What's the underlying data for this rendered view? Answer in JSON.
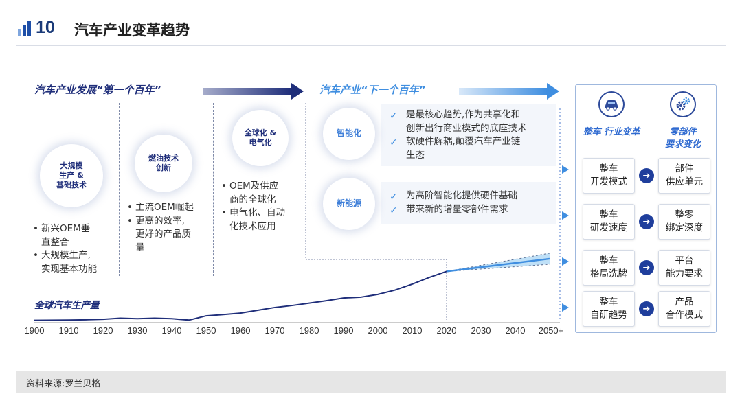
{
  "header": {
    "number": "10",
    "title": "汽车产业变革趋势"
  },
  "eras": {
    "first": "汽车产业发展“第一个百年”",
    "next": "汽车产业“下一个百年”"
  },
  "phases": [
    {
      "circle": "大规模\n生产 &\n基础技术",
      "bullets": [
        "新兴OEM垂\n直整合",
        "大规模生产,\n实现基本功能"
      ]
    },
    {
      "circle": "燃油技术\n创新",
      "bullets": [
        "主流OEM崛起",
        "更高的效率,\n更好的产品质\n量"
      ]
    },
    {
      "circle": "全球化 &\n电气化",
      "bullets": [
        "OEM及供应\n商的全球化",
        "电气化、自动\n化技术应用"
      ]
    }
  ],
  "future": [
    {
      "circle": "智能化",
      "points": [
        "是最核心趋势,作为共享化和\n创新出行商业模式的底座技术",
        "软硬件解耦,颠覆汽车产业链\n生态"
      ]
    },
    {
      "circle": "新能源",
      "points": [
        "为高阶智能化提供硬件基础",
        "带来新的增量零部件需求"
      ]
    }
  ],
  "right_panel": {
    "left_header": "整车\n行业变革",
    "right_header": "零部件\n要求变化",
    "left_icon": "car-icon",
    "right_icon": "gears-icon",
    "rows": [
      {
        "left": "整车\n开发模式",
        "right": "部件\n供应单元"
      },
      {
        "left": "整车\n研发速度",
        "right": "整零\n绑定深度"
      },
      {
        "left": "整车\n格局洗牌",
        "right": "平台\n能力要求"
      },
      {
        "left": "整车\n自研趋势",
        "right": "产品\n合作模式"
      }
    ]
  },
  "chart_data": {
    "type": "line",
    "title": "全球汽车生产量",
    "x_ticks": [
      "1900",
      "1910",
      "1920",
      "1930",
      "1940",
      "1950",
      "1960",
      "1970",
      "1980",
      "1990",
      "2000",
      "2010",
      "2020",
      "2030",
      "2040",
      "2050+"
    ],
    "series": [
      {
        "values": [
          [
            1900,
            0.3
          ],
          [
            1910,
            0.6
          ],
          [
            1915,
            1.0
          ],
          [
            1920,
            1.6
          ],
          [
            1925,
            3.0
          ],
          [
            1930,
            2.4
          ],
          [
            1935,
            3.0
          ],
          [
            1940,
            2.4
          ],
          [
            1945,
            0.6
          ],
          [
            1950,
            6.0
          ],
          [
            1955,
            7.6
          ],
          [
            1960,
            9.4
          ],
          [
            1965,
            13.0
          ],
          [
            1970,
            16.5
          ],
          [
            1975,
            19.0
          ],
          [
            1980,
            22.0
          ],
          [
            1985,
            25.0
          ],
          [
            1990,
            28.5
          ],
          [
            1995,
            29.5
          ],
          [
            2000,
            33.0
          ],
          [
            2005,
            38.5
          ],
          [
            2010,
            46.0
          ],
          [
            2015,
            54.5
          ],
          [
            2020,
            62.0
          ]
        ]
      }
    ],
    "forecast": {
      "center": [
        [
          2020,
          62.0
        ],
        [
          2050,
          78.0
        ]
      ],
      "upper": [
        [
          2020,
          62.0
        ],
        [
          2050,
          85.0
        ]
      ],
      "lower": [
        [
          2020,
          62.0
        ],
        [
          2050,
          71.0
        ]
      ]
    },
    "y_range": [
      0,
      110
    ]
  },
  "colors": {
    "navy": "#1f2e7a",
    "accent_blue": "#3f8ee0",
    "band": "#bfe0f7"
  },
  "footer": {
    "source": "资料来源:罗兰贝格"
  }
}
